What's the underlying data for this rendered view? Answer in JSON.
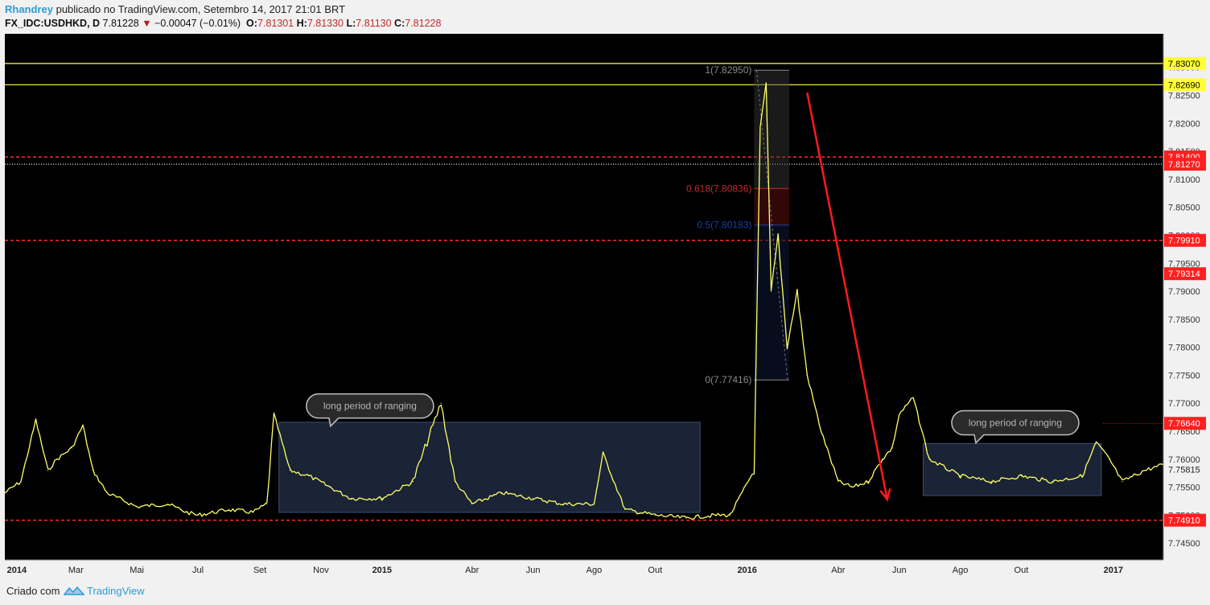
{
  "header": {
    "author": "Rhandrey",
    "published": "publicado no TradingView.com, Setembro 14, 2017 21:01 BRT",
    "symbol": "FX_IDC:USDHKD, D",
    "last": "7.81228",
    "change": "−0.00047 (−0.01%)",
    "o_label": "O:",
    "o_value": "7.81301",
    "h_label": "H:",
    "h_value": "7.81330",
    "l_label": "L:",
    "l_value": "7.81130",
    "c_label": "C:",
    "c_value": "7.81228"
  },
  "footer": {
    "made": "Criado com",
    "brand": "TradingView"
  },
  "colors": {
    "price": "#ffff66",
    "background": "#000000",
    "support": "#ff2a2a",
    "box": "#1e2a3f",
    "arrow": "#ff1a1a",
    "yellow_line": "#ffff4d"
  },
  "chart_data": {
    "type": "line",
    "ylim": [
      7.742,
      7.836
    ],
    "y_ticks": [
      "7.74500",
      "7.75000",
      "7.75500",
      "7.76000",
      "7.76500",
      "7.77000",
      "7.77500",
      "7.78000",
      "7.78500",
      "7.79000",
      "7.79500",
      "7.80000",
      "7.80500",
      "7.81000",
      "7.81500",
      "7.82000",
      "7.82500",
      "7.83000"
    ],
    "x_ticks": [
      {
        "label": "2014",
        "x": "2014-01-01",
        "bold": true
      },
      {
        "label": "Mar",
        "x": "2014-03-01"
      },
      {
        "label": "Mai",
        "x": "2014-05-01"
      },
      {
        "label": "Jul",
        "x": "2014-07-01"
      },
      {
        "label": "Set",
        "x": "2014-09-01"
      },
      {
        "label": "Nov",
        "x": "2014-11-01"
      },
      {
        "label": "2015",
        "x": "2015-01-01",
        "bold": true
      },
      {
        "label": "Abr",
        "x": "2015-04-01"
      },
      {
        "label": "Jun",
        "x": "2015-06-01"
      },
      {
        "label": "Ago",
        "x": "2015-08-01"
      },
      {
        "label": "Out",
        "x": "2015-10-01"
      },
      {
        "label": "2016",
        "x": "2016-01-01",
        "bold": true
      },
      {
        "label": "Abr",
        "x": "2016-04-01"
      },
      {
        "label": "Jun",
        "x": "2016-06-01"
      },
      {
        "label": "Ago",
        "x": "2016-08-01"
      },
      {
        "label": "Out",
        "x": "2016-10-01"
      },
      {
        "label": "2017",
        "x": "2017-01-01",
        "bold": true
      }
    ],
    "x": [
      "2013-12-20",
      "2014-01-05",
      "2014-01-20",
      "2014-02-01",
      "2014-02-10",
      "2014-02-25",
      "2014-03-08",
      "2014-03-18",
      "2014-04-01",
      "2014-05-01",
      "2014-06-01",
      "2014-06-20",
      "2014-07-01",
      "2014-08-01",
      "2014-08-25",
      "2014-09-08",
      "2014-09-15",
      "2014-10-01",
      "2014-10-20",
      "2014-11-10",
      "2014-12-01",
      "2015-01-01",
      "2015-02-01",
      "2015-03-01",
      "2015-03-15",
      "2015-04-01",
      "2015-05-01",
      "2015-06-01",
      "2015-07-01",
      "2015-08-01",
      "2015-08-10",
      "2015-09-01",
      "2015-10-01",
      "2015-11-01",
      "2015-12-01",
      "2015-12-15",
      "2016-01-08",
      "2016-01-14",
      "2016-01-20",
      "2016-01-25",
      "2016-02-01",
      "2016-02-10",
      "2016-02-20",
      "2016-03-01",
      "2016-03-15",
      "2016-04-01",
      "2016-04-15",
      "2016-05-01",
      "2016-05-15",
      "2016-05-25",
      "2016-06-01",
      "2016-06-15",
      "2016-07-01",
      "2016-08-01",
      "2016-09-01",
      "2016-10-01",
      "2016-11-01",
      "2016-12-01",
      "2016-12-15",
      "2016-12-28",
      "2017-01-10",
      "2017-02-01",
      "2017-02-20"
    ],
    "close": [
      7.754,
      7.756,
      7.767,
      7.758,
      7.76,
      7.762,
      7.766,
      7.758,
      7.754,
      7.7515,
      7.752,
      7.7505,
      7.75,
      7.751,
      7.7505,
      7.752,
      7.768,
      7.758,
      7.757,
      7.755,
      7.753,
      7.753,
      7.756,
      7.77,
      7.756,
      7.752,
      7.754,
      7.753,
      7.752,
      7.752,
      7.761,
      7.751,
      7.75,
      7.7495,
      7.75,
      7.75,
      7.758,
      7.819,
      7.827,
      7.79,
      7.8,
      7.78,
      7.79,
      7.775,
      7.765,
      7.756,
      7.755,
      7.756,
      7.76,
      7.762,
      7.768,
      7.771,
      7.76,
      7.757,
      7.756,
      7.757,
      7.756,
      7.757,
      7.763,
      7.76,
      7.756,
      7.758,
      7.759
    ],
    "horizontal_levels": [
      {
        "label": "7.83070",
        "value": 7.8307,
        "style": "yellow"
      },
      {
        "label": "7.82690",
        "value": 7.8269,
        "style": "yellow"
      },
      {
        "label": "7.81400",
        "value": 7.814,
        "style": "red-dashed"
      },
      {
        "label": "7.81270",
        "value": 7.8127,
        "style": "white-dotted"
      },
      {
        "label": "7.79910",
        "value": 7.7991,
        "style": "red-dashed"
      },
      {
        "label": "7.74910",
        "value": 7.7491,
        "style": "red-dashed"
      }
    ],
    "price_labels": [
      {
        "label": "7.79314",
        "value": 7.79314
      },
      {
        "label": "7.76640",
        "value": 7.7664
      },
      {
        "label": "7.75815",
        "value": 7.75815
      }
    ],
    "fibonacci": {
      "x_start": "2016-01-08",
      "x_end": "2016-02-12",
      "levels": [
        {
          "label": "1(7.82950)",
          "value": 7.8295,
          "color": "#8a8a8a"
        },
        {
          "label": "0.618(7.80836)",
          "value": 7.80836,
          "color": "#c62828"
        },
        {
          "label": "0.5(7.80183)",
          "value": 7.80183,
          "color": "#1a3fa8"
        },
        {
          "label": "0(7.77416)",
          "value": 7.77416,
          "color": "#8a8a8a"
        }
      ]
    },
    "range_boxes": [
      {
        "x1": "2014-09-20",
        "x2": "2015-11-15",
        "y1": 7.7505,
        "y2": 7.7666
      },
      {
        "x1": "2016-06-25",
        "x2": "2016-12-20",
        "y1": 7.7535,
        "y2": 7.7628
      }
    ],
    "annotations": [
      {
        "text": "long period of ranging",
        "x": "2014-12-20",
        "y": 7.7695
      },
      {
        "text": "long period of ranging",
        "x": "2016-09-25",
        "y": 7.7665
      }
    ],
    "arrow": {
      "x1": "2016-03-01",
      "y1": 7.8255,
      "x2": "2016-05-20",
      "y2": 7.7528
    }
  }
}
